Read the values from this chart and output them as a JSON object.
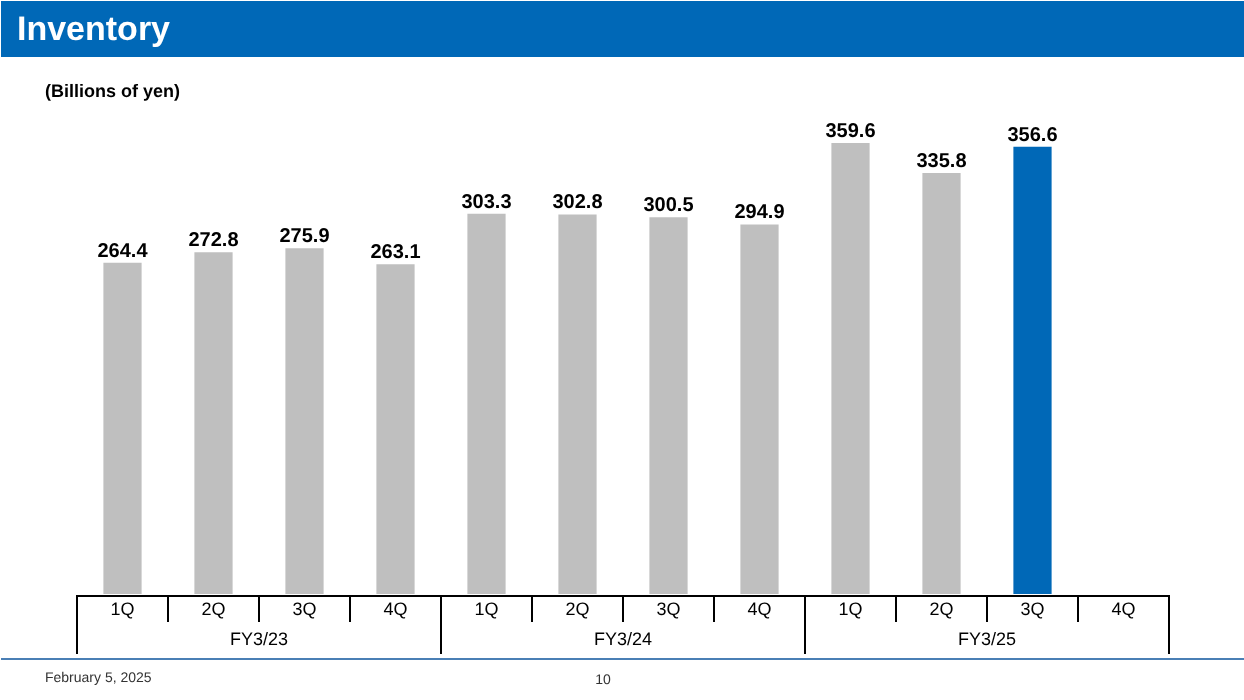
{
  "chart_data": {
    "type": "bar",
    "title": "Inventory",
    "subtitle": "(Billions of yen)",
    "categories": [
      "1Q",
      "2Q",
      "3Q",
      "4Q",
      "1Q",
      "2Q",
      "3Q",
      "4Q",
      "1Q",
      "2Q",
      "3Q",
      "4Q"
    ],
    "values": [
      264.4,
      272.8,
      275.9,
      263.1,
      303.3,
      302.8,
      300.5,
      294.9,
      359.6,
      335.8,
      356.6,
      null
    ],
    "colors": [
      "#bfbfbf",
      "#bfbfbf",
      "#bfbfbf",
      "#bfbfbf",
      "#bfbfbf",
      "#bfbfbf",
      "#bfbfbf",
      "#bfbfbf",
      "#bfbfbf",
      "#bfbfbf",
      "#0068b7",
      "#bfbfbf"
    ],
    "data_labels": true,
    "tick_labels": "x",
    "annotations": [
      "FY3/23",
      "FY3/24",
      "FY3/25",
      "February 5, 2025",
      "10"
    ]
  }
}
